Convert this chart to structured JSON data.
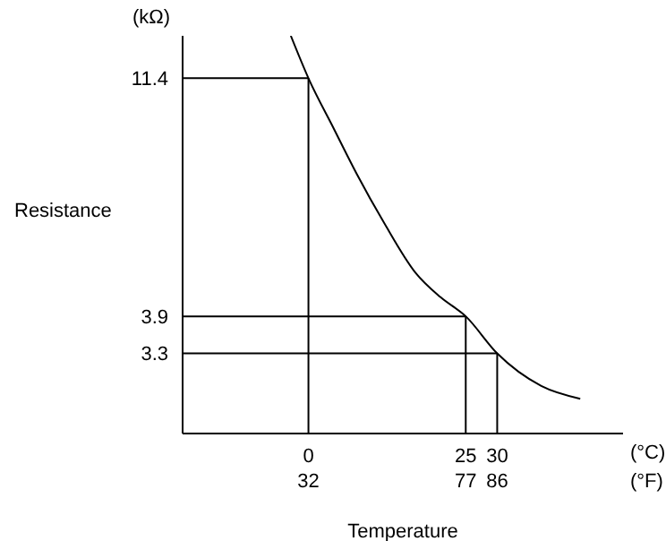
{
  "chart_data": {
    "type": "line",
    "xlabel": "Temperature",
    "ylabel": "Resistance",
    "annotations": [
      "(kΩ)",
      "(°C)",
      "(°F)"
    ],
    "x": [
      -2.8,
      0,
      4,
      7.7,
      12,
      17,
      21,
      25,
      30,
      37,
      43.2
    ],
    "series": [
      {
        "color": "#000000",
        "values": [
          13.8,
          11.4,
          9.1,
          7.4,
          5.95,
          4.75,
          4.25,
          3.9,
          3.3,
          2.85,
          2.69
        ]
      }
    ],
    "xlim": [
      -20,
      50
    ],
    "xticks": [
      0,
      25,
      30
    ],
    "x2lim": [
      -4,
      122
    ],
    "x2ticks": [
      32,
      77,
      86
    ],
    "ylim": [
      2.3,
      13.8
    ],
    "yticks": [
      3.3,
      3.9,
      11.4
    ],
    "log": "y",
    "grid": false,
    "legend": false,
    "marker": "none",
    "line_style": "solid",
    "ref_lines": [
      {
        "axis": "y",
        "value": 11.4,
        "color": "#000000"
      },
      {
        "axis": "y",
        "value": 3.9,
        "color": "#000000"
      },
      {
        "axis": "y",
        "value": 3.3,
        "color": "#000000"
      },
      {
        "axis": "x",
        "value": 0,
        "color": "#000000"
      },
      {
        "axis": "x",
        "value": 25,
        "color": "#000000"
      },
      {
        "axis": "x",
        "value": 30,
        "color": "#000000"
      }
    ]
  }
}
